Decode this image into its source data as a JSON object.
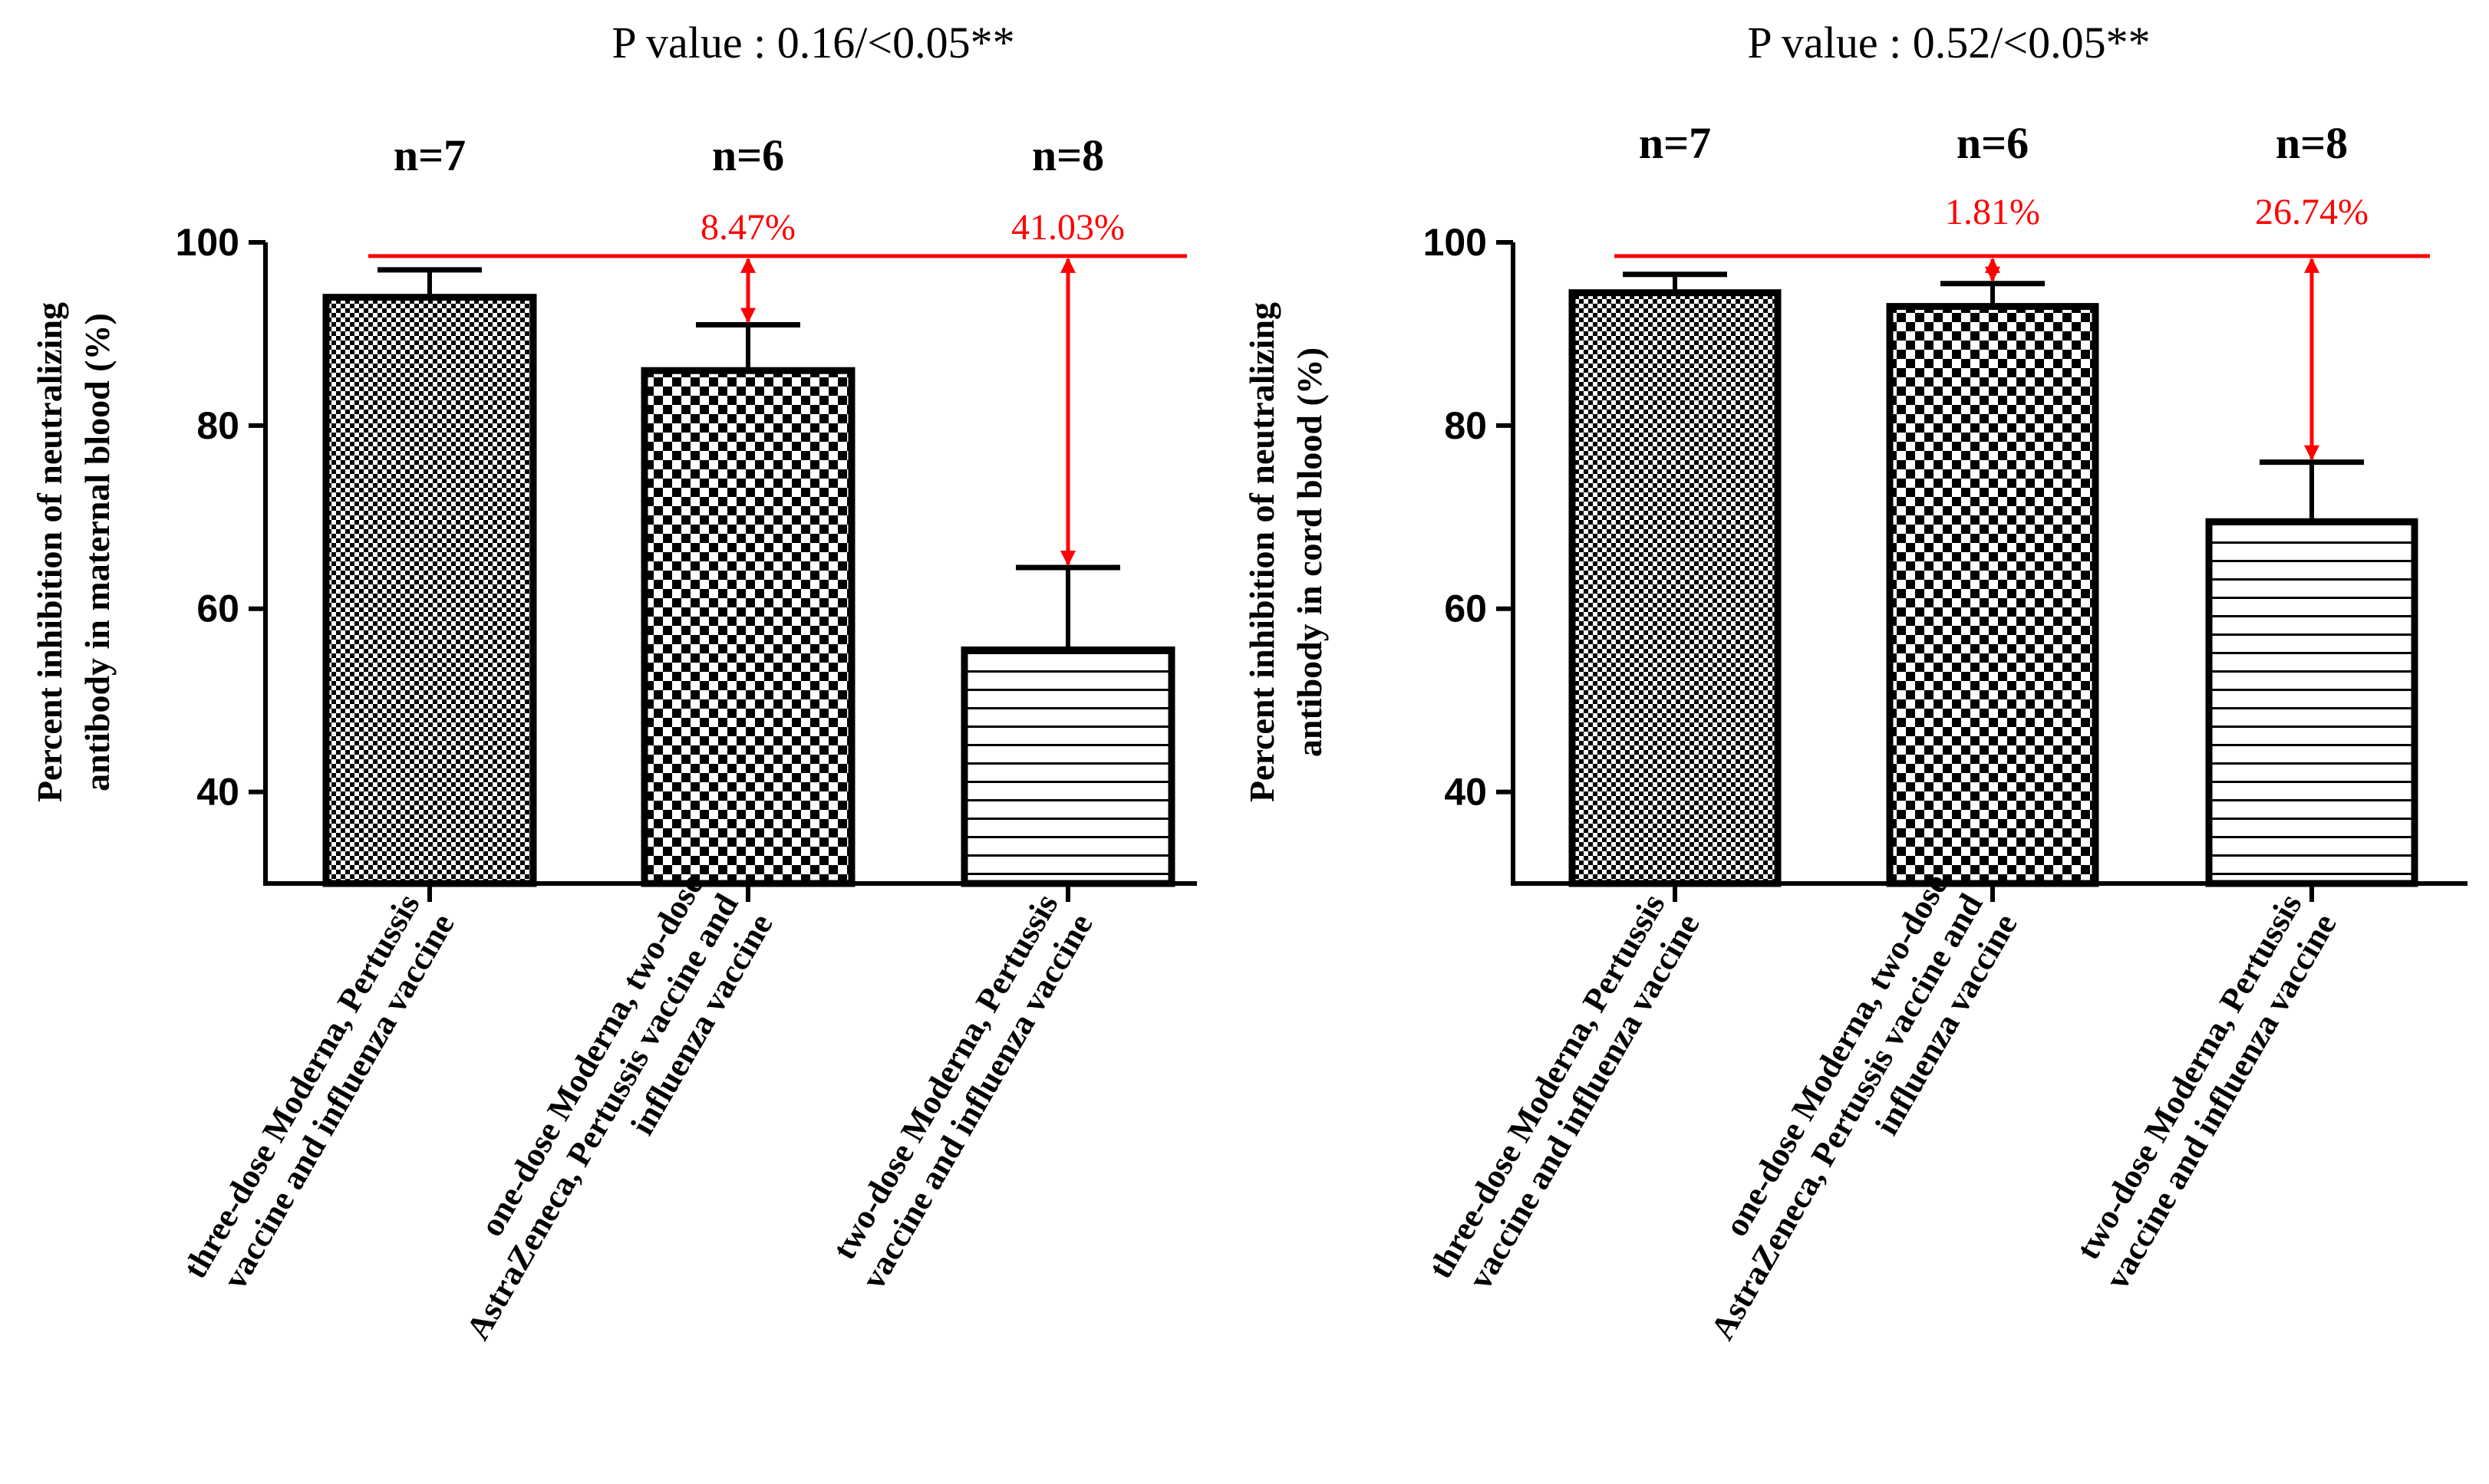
{
  "colors": {
    "axis": "#000000",
    "annotation": "#ff0000",
    "background": "#ffffff"
  },
  "chart_data": [
    {
      "type": "bar",
      "title": "P value : 0.16/<0.05**",
      "ylabel_line1": "Percent inhibition of neutralizing",
      "ylabel_line2": "antibody in maternal blood (%)",
      "ylim": [
        30,
        100
      ],
      "yticks": [
        "100",
        "80",
        "60",
        "40"
      ],
      "ytick_values": [
        100,
        80,
        60,
        40
      ],
      "reference_line": 98.5,
      "categories": [
        {
          "lines": [
            "three-dose Moderna, Pertussis",
            "vaccine and influenza vaccine"
          ],
          "n": "n=7",
          "value": 94,
          "error": 3,
          "pattern": "fine-check"
        },
        {
          "lines": [
            "one-dose Moderna, two-dose",
            "AstraZeneca, Pertussis vaccine and",
            "influenza vaccine"
          ],
          "n": "n=6",
          "value": 86,
          "error": 5,
          "pattern": "coarse-check",
          "difference": "8.47%"
        },
        {
          "lines": [
            "two-dose Moderna, Pertussis",
            "vaccine and influenza vaccine"
          ],
          "n": "n=8",
          "value": 55.5,
          "error": 9,
          "pattern": "horizontal-lines",
          "difference": "41.03%"
        }
      ]
    },
    {
      "type": "bar",
      "title": "P value : 0.52/<0.05**",
      "ylabel_line1": "Percent inhibition of neutralizing",
      "ylabel_line2": "antibody in cord blood (%)",
      "ylim": [
        30,
        100
      ],
      "yticks": [
        "100",
        "80",
        "60",
        "40"
      ],
      "ytick_values": [
        100,
        80,
        60,
        40
      ],
      "reference_line": 98.5,
      "categories": [
        {
          "lines": [
            "three-dose Moderna, Pertussis",
            "vaccine and influenza vaccine"
          ],
          "n": "n=7",
          "value": 94.5,
          "error": 2,
          "pattern": "fine-check"
        },
        {
          "lines": [
            "one-dose Moderna, two-dose",
            "AstraZeneca, Pertussis vaccine and",
            "influenza vaccine"
          ],
          "n": "n=6",
          "value": 93,
          "error": 2.5,
          "pattern": "coarse-check",
          "difference": "1.81%"
        },
        {
          "lines": [
            "two-dose Moderna, Pertussis",
            "vaccine and influenza vaccine"
          ],
          "n": "n=8",
          "value": 69.5,
          "error": 6.5,
          "pattern": "horizontal-lines",
          "difference": "26.74%"
        }
      ]
    }
  ]
}
